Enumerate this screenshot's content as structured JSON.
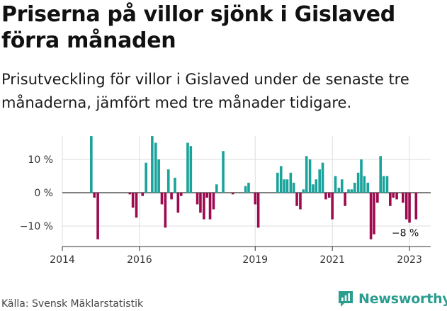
{
  "title": "Priserna på villor sjönk i Gislaved förra månaden",
  "subtitle": "Prisutveckling för villor i Gislaved under de senaste tre månaderna, jämfört med tre månader tidigare.",
  "source": "Källa: Svensk Mäklarstatistik",
  "brand": "Newsworthy",
  "colors": {
    "positive": "#1aa39b",
    "negative": "#9e0a4f",
    "grid": "#dddddd",
    "zero_line": "#333333",
    "brand": "#2a9d8f"
  },
  "chart_data": {
    "type": "bar",
    "title": "Priserna på villor sjönk i Gislaved förra månaden",
    "xlabel": "",
    "ylabel": "",
    "ylim": [
      -15,
      17
    ],
    "yticks": [
      10,
      0,
      -10
    ],
    "ytick_labels": [
      "10 %",
      "0 %",
      "−10 %"
    ],
    "xticks": [
      2014,
      2016,
      2019,
      2021,
      2023
    ],
    "xtick_labels": [
      "2014",
      "2016",
      "2019",
      "2021",
      "2023"
    ],
    "xlim": [
      2014.0,
      2023.55
    ],
    "end_label": "−8 %",
    "points": [
      {
        "t": 2014.75,
        "v": 17
      },
      {
        "t": 2014.83,
        "v": -1.5
      },
      {
        "t": 2014.92,
        "v": -14
      },
      {
        "t": 2015.75,
        "v": -0.5
      },
      {
        "t": 2015.83,
        "v": -4.5
      },
      {
        "t": 2015.92,
        "v": -7.5
      },
      {
        "t": 2016.08,
        "v": -1
      },
      {
        "t": 2016.17,
        "v": 9
      },
      {
        "t": 2016.33,
        "v": 17
      },
      {
        "t": 2016.42,
        "v": 15
      },
      {
        "t": 2016.5,
        "v": 10
      },
      {
        "t": 2016.58,
        "v": -3.5
      },
      {
        "t": 2016.67,
        "v": -10.5
      },
      {
        "t": 2016.75,
        "v": 7
      },
      {
        "t": 2016.83,
        "v": -2
      },
      {
        "t": 2016.92,
        "v": 4.5
      },
      {
        "t": 2017.0,
        "v": -6
      },
      {
        "t": 2017.08,
        "v": -1
      },
      {
        "t": 2017.25,
        "v": 15
      },
      {
        "t": 2017.33,
        "v": 14
      },
      {
        "t": 2017.5,
        "v": -3.5
      },
      {
        "t": 2017.58,
        "v": -6
      },
      {
        "t": 2017.67,
        "v": -8
      },
      {
        "t": 2017.75,
        "v": -1.5
      },
      {
        "t": 2017.83,
        "v": -8
      },
      {
        "t": 2017.92,
        "v": -5
      },
      {
        "t": 2018.0,
        "v": 2.5
      },
      {
        "t": 2018.17,
        "v": 12.5
      },
      {
        "t": 2018.42,
        "v": -0.5
      },
      {
        "t": 2018.75,
        "v": 2
      },
      {
        "t": 2018.83,
        "v": 3
      },
      {
        "t": 2019.0,
        "v": -3.5
      },
      {
        "t": 2019.08,
        "v": -10.5
      },
      {
        "t": 2019.58,
        "v": 6
      },
      {
        "t": 2019.67,
        "v": 8
      },
      {
        "t": 2019.75,
        "v": 4
      },
      {
        "t": 2019.83,
        "v": 4
      },
      {
        "t": 2019.92,
        "v": 6
      },
      {
        "t": 2020.0,
        "v": 3
      },
      {
        "t": 2020.08,
        "v": -4
      },
      {
        "t": 2020.17,
        "v": -5
      },
      {
        "t": 2020.25,
        "v": 1
      },
      {
        "t": 2020.33,
        "v": 11
      },
      {
        "t": 2020.42,
        "v": 10
      },
      {
        "t": 2020.5,
        "v": 2.5
      },
      {
        "t": 2020.58,
        "v": 4
      },
      {
        "t": 2020.67,
        "v": 7
      },
      {
        "t": 2020.75,
        "v": 9
      },
      {
        "t": 2020.83,
        "v": -2
      },
      {
        "t": 2020.92,
        "v": -1.5
      },
      {
        "t": 2021.0,
        "v": -8
      },
      {
        "t": 2021.08,
        "v": 5
      },
      {
        "t": 2021.17,
        "v": 1.5
      },
      {
        "t": 2021.25,
        "v": 4
      },
      {
        "t": 2021.33,
        "v": -4
      },
      {
        "t": 2021.42,
        "v": 1
      },
      {
        "t": 2021.5,
        "v": 1
      },
      {
        "t": 2021.58,
        "v": 3
      },
      {
        "t": 2021.67,
        "v": 6
      },
      {
        "t": 2021.75,
        "v": 10
      },
      {
        "t": 2021.83,
        "v": 5
      },
      {
        "t": 2021.92,
        "v": 3
      },
      {
        "t": 2022.0,
        "v": -14
      },
      {
        "t": 2022.08,
        "v": -12.5
      },
      {
        "t": 2022.17,
        "v": -3
      },
      {
        "t": 2022.25,
        "v": 11
      },
      {
        "t": 2022.33,
        "v": 5
      },
      {
        "t": 2022.42,
        "v": 5
      },
      {
        "t": 2022.5,
        "v": -4
      },
      {
        "t": 2022.58,
        "v": -1.5
      },
      {
        "t": 2022.67,
        "v": -2
      },
      {
        "t": 2022.83,
        "v": -3
      },
      {
        "t": 2022.92,
        "v": -8
      },
      {
        "t": 2023.0,
        "v": -9
      },
      {
        "t": 2023.17,
        "v": -8
      }
    ]
  }
}
